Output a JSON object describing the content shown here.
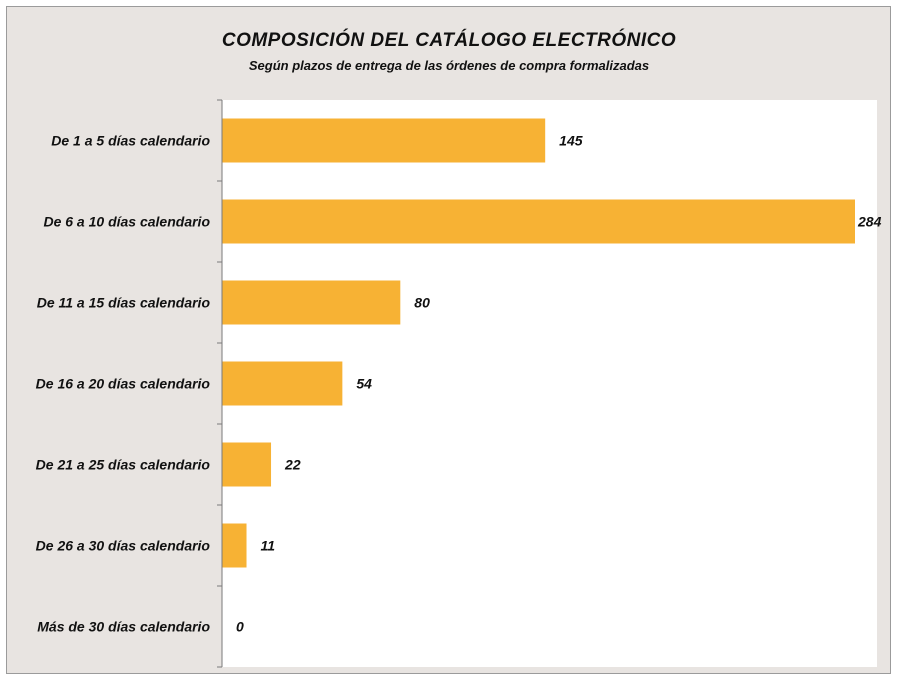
{
  "chart_data": {
    "type": "bar",
    "orientation": "horizontal",
    "title": "COMPOSICIÓN DEL CATÁLOGO  ELECTRÓNICO",
    "subtitle": "Según  plazos de entrega de las órdenes de compra formalizadas",
    "categories": [
      "De 1 a 5 días calendario",
      "De 6 a 10 días calendario",
      "De 11 a 15 días calendario",
      "De 16 a 20 días calendario",
      "De 21 a 25 días calendario",
      "De 26 a 30 días calendario",
      "Más de 30 días calendario"
    ],
    "values": [
      145,
      284,
      80,
      54,
      22,
      11,
      0
    ],
    "xlim": [
      0,
      284
    ],
    "grid": false,
    "legend": "none",
    "bar_color": "#f7b234",
    "plot_background": "#ffffff",
    "chart_background": "#e8e4e1"
  }
}
